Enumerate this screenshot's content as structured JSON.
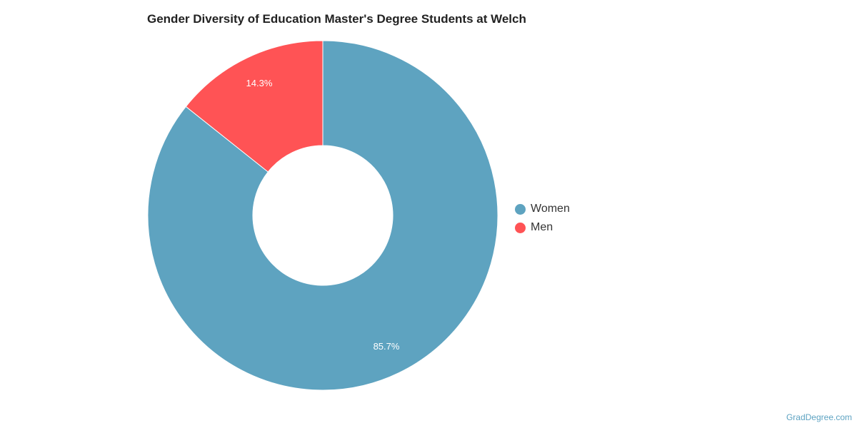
{
  "chart_data": {
    "type": "pie",
    "variant": "donut",
    "title": "Gender Diversity of Education Master's Degree Students at Welch",
    "categories": [
      "Women",
      "Men"
    ],
    "values": [
      85.7,
      14.3
    ],
    "value_labels": [
      "85.7%",
      "14.3%"
    ],
    "colors": [
      "#5ea3c0",
      "#ff5355"
    ],
    "legend_position": "right"
  },
  "watermark": "GradDegree.com"
}
